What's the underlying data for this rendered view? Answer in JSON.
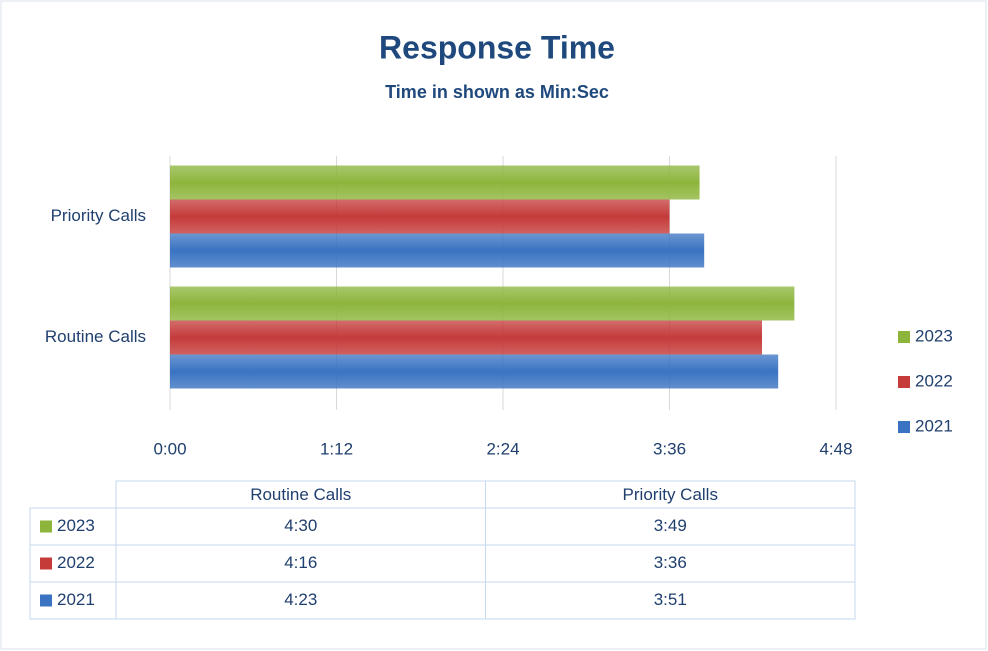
{
  "chart_data": {
    "type": "barh",
    "title": "Response Time",
    "subtitle": "Time in shown as Min:Sec",
    "categories": [
      "Routine Calls",
      "Priority Calls"
    ],
    "series": [
      {
        "name": "2021",
        "color": "#3a73c2",
        "values": [
          263,
          231
        ],
        "value_labels": [
          "4:23",
          "3:51"
        ]
      },
      {
        "name": "2022",
        "color": "#c43b3a",
        "values": [
          256,
          216
        ],
        "value_labels": [
          "4:16",
          "3:36"
        ]
      },
      {
        "name": "2023",
        "color": "#8db53c",
        "values": [
          270,
          229
        ],
        "value_labels": [
          "4:30",
          "3:49"
        ]
      }
    ],
    "xlim": [
      0,
      288
    ],
    "xticks": [
      {
        "value": 0,
        "label": "0:00"
      },
      {
        "value": 72,
        "label": "1:12"
      },
      {
        "value": 144,
        "label": "2:24"
      },
      {
        "value": 216,
        "label": "3:36"
      },
      {
        "value": 288,
        "label": "4:48"
      }
    ],
    "grid": true,
    "legend": "right",
    "data_table": true
  }
}
